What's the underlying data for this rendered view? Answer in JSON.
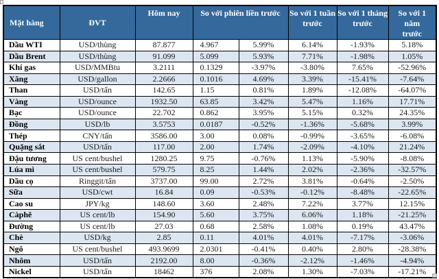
{
  "colors": {
    "header_bg": "#35689b",
    "header_text": "#ffffff",
    "row_alt_bg": "#dce6f1",
    "border": "#000000",
    "text": "#1a1a1a"
  },
  "table": {
    "headers": {
      "col_item": "Mặt hàng",
      "col_unit": "ĐVT",
      "col_today": "Hôm nay",
      "col_prev_session": "So với phiên liền trước",
      "col_week": "So với 1 tuần trước",
      "col_month": "So với 1 tháng trước",
      "col_year": "So với 1 năm trước"
    },
    "rows": [
      {
        "item": "Dầu WTI",
        "unit": "USD/thùng",
        "today": "87.877",
        "change": "4.967",
        "change_pct": "5.99%",
        "week": "6.14%",
        "month": "-1.93%",
        "year": "5.18%"
      },
      {
        "item": "Dầu Brent",
        "unit": "USD/thùng",
        "today": "91.099",
        "change": "5.099",
        "change_pct": "5.93%",
        "week": "7.71%",
        "month": "-1.98%",
        "year": "1.05%"
      },
      {
        "item": "Khí gas",
        "unit": "USD/MMBtu",
        "today": "3.2111",
        "change": "0.1329",
        "change_pct": "-3.97%",
        "week": "-3.80%",
        "month": "7.65%",
        "year": "-52.96%"
      },
      {
        "item": "Xăng",
        "unit": "USD/gallon",
        "today": "2.2666",
        "change": "0.1016",
        "change_pct": "4.69%",
        "week": "3.39%",
        "month": "-15.41%",
        "year": "-7.64%"
      },
      {
        "item": "Than",
        "unit": "USD/tấn",
        "today": "142.65",
        "change": "1.15",
        "change_pct": "0.81%",
        "week": "1.89%",
        "month": "-12.08%",
        "year": "-64.07%"
      },
      {
        "item": "Vàng",
        "unit": "USD/ounce",
        "today": "1932.50",
        "change": "63.85",
        "change_pct": "3.42%",
        "week": "5.47%",
        "month": "1.16%",
        "year": "17.71%"
      },
      {
        "item": "Bạc",
        "unit": "USD/ounce",
        "today": "22.702",
        "change": "0.862",
        "change_pct": "3.95%",
        "week": "5.15%",
        "month": "0.32%",
        "year": "24.35%"
      },
      {
        "item": "Đồng",
        "unit": "USD/lb",
        "today": "3.5753",
        "change": "0.0187",
        "change_pct": "-0.52%",
        "week": "-1.36%",
        "month": "-5.68%",
        "year": "3.99%"
      },
      {
        "item": "Thép",
        "unit": "CNY/tấn",
        "today": "3586.00",
        "change": "3.00",
        "change_pct": "0.08%",
        "week": "-0.99%",
        "month": "-3.65%",
        "year": "-6.08%"
      },
      {
        "item": "Quặng sắt",
        "unit": "USD/tấn",
        "today": "117.00",
        "change": "2.00",
        "change_pct": "1.74%",
        "week": "-2.09%",
        "month": "-4.10%",
        "year": "21.24%"
      },
      {
        "item": "Đậu tương",
        "unit": "US cent/bushel",
        "today": "1280.25",
        "change": "9.75",
        "change_pct": "-0.76%",
        "week": "1.13%",
        "month": "-5.90%",
        "year": "-8.08%"
      },
      {
        "item": "Lúa mì",
        "unit": "US cent/bushel",
        "today": "579.75",
        "change": "8.25",
        "change_pct": "1.44%",
        "week": "2.02%",
        "month": "-2.36%",
        "year": "-32.57%"
      },
      {
        "item": "Dầu cọ",
        "unit": "Ringgit/tấn",
        "today": "3737.00",
        "change": "99.00",
        "change_pct": "2.72%",
        "week": "3.81%",
        "month": "-0.64%",
        "year": "-2.50%"
      },
      {
        "item": "Sữa",
        "unit": "USD/cwt",
        "today": "16.84",
        "change": "0.09",
        "change_pct": "-0.53%",
        "week": "-0.12%",
        "month": "-8.48%",
        "year": "-22.65%"
      },
      {
        "item": "Cao su",
        "unit": "JPY/kg",
        "today": "148.60",
        "change": "3.60",
        "change_pct": "2.48%",
        "week": "7.22%",
        "month": "3.77%",
        "year": "12.15%"
      },
      {
        "item": "Càphê",
        "unit": "US cent/lb",
        "today": "154.90",
        "change": "5.60",
        "change_pct": "3.75%",
        "week": "6.06%",
        "month": "1.18%",
        "year": "-21.25%"
      },
      {
        "item": "Đường",
        "unit": "US cent/lb",
        "today": "27.03",
        "change": "0.68",
        "change_pct": "2.58%",
        "week": "1.08%",
        "month": "0.19%",
        "year": "43.47%"
      },
      {
        "item": "Chè",
        "unit": "USD/kg",
        "today": "2.85",
        "change": "0.11",
        "change_pct": "4.01%",
        "week": "4.01%",
        "month": "-7.17%",
        "year": "-3.06%"
      },
      {
        "item": "Ngô",
        "unit": "US cent/bushel",
        "today": "493.9699",
        "change": "2.0301",
        "change_pct": "-0.41%",
        "week": "0.40%",
        "month": "2.80%",
        "year": "-28.38%"
      },
      {
        "item": "Nhôm",
        "unit": "USD/tấn",
        "today": "2192.00",
        "change": "8.00",
        "change_pct": "-0.36%",
        "week": "-2.12%",
        "month": "-1.46%",
        "year": "-4.94%"
      },
      {
        "item": "Nickel",
        "unit": "USD/tấn",
        "today": "18462",
        "change": "376",
        "change_pct": "2.08%",
        "week": "1.30%",
        "month": "-7.03%",
        "year": "-17.21%"
      }
    ]
  }
}
